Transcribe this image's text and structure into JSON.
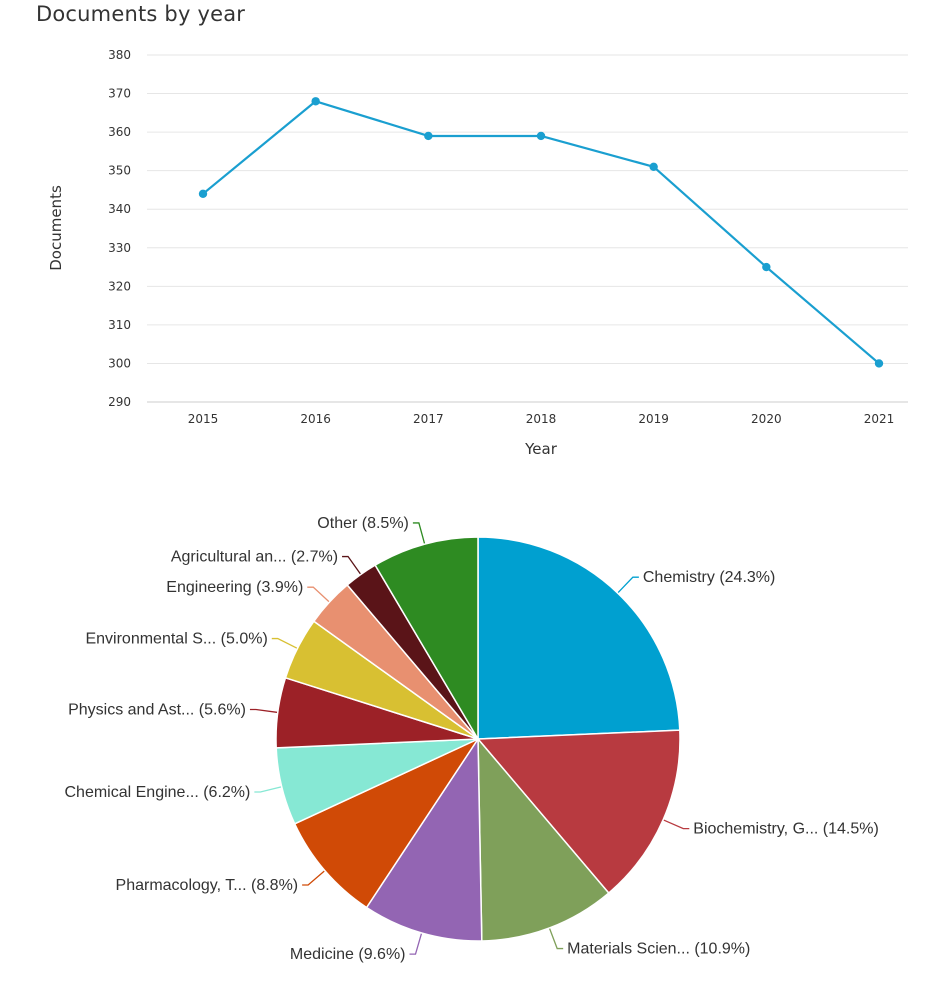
{
  "chart_data": [
    {
      "type": "line",
      "title": "Documents by year",
      "xlabel": "Year",
      "ylabel": "Documents",
      "x": [
        "2015",
        "2016",
        "2017",
        "2018",
        "2019",
        "2020",
        "2021"
      ],
      "series": [
        {
          "name": "Documents",
          "values": [
            344,
            368,
            359,
            359,
            351,
            325,
            300
          ]
        }
      ],
      "ylim": [
        290,
        380
      ],
      "yticks": [
        "290",
        "300",
        "310",
        "320",
        "330",
        "340",
        "350",
        "360",
        "370",
        "380"
      ],
      "grid": true,
      "color": "#1a9fd0"
    },
    {
      "type": "pie",
      "slices": [
        {
          "label": "Chemistry (24.3%)",
          "value": 24.3,
          "color": "#00a0d0"
        },
        {
          "label": "Biochemistry, G... (14.5%)",
          "value": 14.5,
          "color": "#b83a40"
        },
        {
          "label": "Materials Scien... (10.9%)",
          "value": 10.9,
          "color": "#7fa05a"
        },
        {
          "label": "Medicine (9.6%)",
          "value": 9.6,
          "color": "#9365b3"
        },
        {
          "label": "Pharmacology, T... (8.8%)",
          "value": 8.8,
          "color": "#d04a06"
        },
        {
          "label": "Chemical Engine... (6.2%)",
          "value": 6.2,
          "color": "#86e8d4"
        },
        {
          "label": "Physics and Ast... (5.6%)",
          "value": 5.6,
          "color": "#9c2127"
        },
        {
          "label": "Environmental S... (5.0%)",
          "value": 5.0,
          "color": "#d8c032"
        },
        {
          "label": "Engineering (3.9%)",
          "value": 3.9,
          "color": "#e89070"
        },
        {
          "label": "Agricultural an... (2.7%)",
          "value": 2.7,
          "color": "#5a1418"
        },
        {
          "label": "Other (8.5%)",
          "value": 8.5,
          "color": "#2e8b22"
        }
      ]
    }
  ]
}
